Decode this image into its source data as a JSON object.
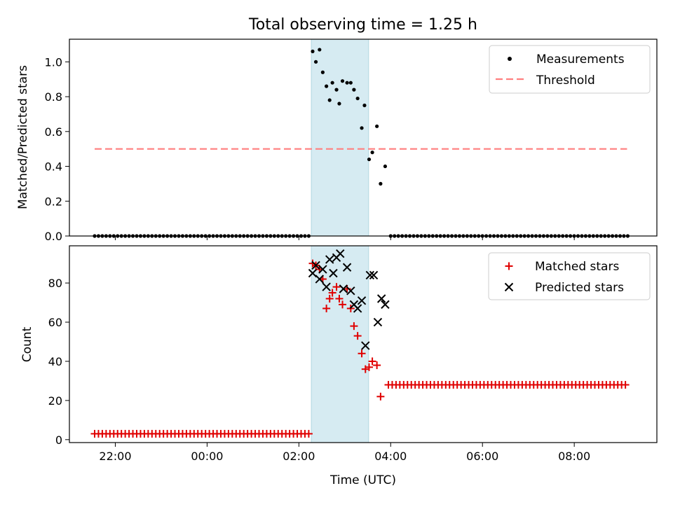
{
  "title": "Total observing time = 1.25 h",
  "colors": {
    "measurement": "#000000",
    "threshold": "#ff7f7f",
    "matched": "#e00000",
    "predicted": "#000000",
    "highlight": "#add8e6"
  },
  "chart_data": [
    {
      "type": "scatter",
      "ylabel": "Matched/Predicted stars",
      "xlim_hours": [
        -3.0,
        9.8
      ],
      "ylim": [
        0,
        1.13
      ],
      "yticks": [
        0.0,
        0.2,
        0.4,
        0.6,
        0.8,
        1.0
      ],
      "ytick_labels": [
        "0.0",
        "0.2",
        "0.4",
        "0.6",
        "0.8",
        "1.0"
      ],
      "highlight_span_hours": [
        2.27,
        3.52
      ],
      "legend_position": "top-right",
      "legend": [
        "Measurements",
        "Threshold"
      ],
      "threshold": {
        "value": 0.5,
        "x_start_hours": -2.45,
        "x_end_hours": 9.15
      },
      "series": [
        {
          "name": "Measurements",
          "marker": "dot",
          "zeros_before": {
            "start_hours": -2.45,
            "step_hours": 0.0833,
            "count": 57
          },
          "zeros_after": {
            "start_hours": 4.0,
            "step_hours": 0.0833,
            "count": 63
          },
          "points": [
            [
              2.3,
              1.06
            ],
            [
              2.37,
              1.0
            ],
            [
              2.45,
              1.07
            ],
            [
              2.52,
              0.94
            ],
            [
              2.6,
              0.86
            ],
            [
              2.67,
              0.78
            ],
            [
              2.73,
              0.88
            ],
            [
              2.82,
              0.84
            ],
            [
              2.88,
              0.76
            ],
            [
              2.95,
              0.89
            ],
            [
              3.05,
              0.88
            ],
            [
              3.13,
              0.88
            ],
            [
              3.2,
              0.84
            ],
            [
              3.28,
              0.79
            ],
            [
              3.37,
              0.62
            ],
            [
              3.43,
              0.75
            ],
            [
              3.53,
              0.44
            ],
            [
              3.6,
              0.48
            ],
            [
              3.7,
              0.63
            ],
            [
              3.78,
              0.3
            ],
            [
              3.88,
              0.4
            ]
          ]
        }
      ]
    },
    {
      "type": "scatter",
      "ylabel": "Count",
      "xlabel": "Time (UTC)",
      "xlim_hours": [
        -3.0,
        9.8
      ],
      "ylim": [
        -1.5,
        99
      ],
      "yticks": [
        0,
        20,
        40,
        60,
        80
      ],
      "ytick_labels": [
        "0",
        "20",
        "40",
        "60",
        "80"
      ],
      "xticks_hours": [
        -2,
        0,
        2,
        4,
        6,
        8
      ],
      "xtick_labels": [
        "22:00",
        "00:00",
        "02:00",
        "04:00",
        "06:00",
        "08:00"
      ],
      "highlight_span_hours": [
        2.27,
        3.52
      ],
      "legend_position": "top-right",
      "legend": [
        "Matched stars",
        "Predicted stars"
      ],
      "series": [
        {
          "name": "Matched stars",
          "marker": "plus",
          "constant_before": {
            "value": 3,
            "start_hours": -2.45,
            "step_hours": 0.0833,
            "count": 57
          },
          "constant_after": {
            "value": 28,
            "start_hours": 3.95,
            "step_hours": 0.0833,
            "count": 63
          },
          "points": [
            [
              2.3,
              90
            ],
            [
              2.37,
              89
            ],
            [
              2.45,
              87
            ],
            [
              2.52,
              82
            ],
            [
              2.6,
              67
            ],
            [
              2.67,
              72
            ],
            [
              2.73,
              75
            ],
            [
              2.82,
              78
            ],
            [
              2.88,
              72
            ],
            [
              2.95,
              69
            ],
            [
              3.05,
              77
            ],
            [
              3.13,
              67
            ],
            [
              3.2,
              58
            ],
            [
              3.28,
              53
            ],
            [
              3.37,
              44
            ],
            [
              3.45,
              36
            ],
            [
              3.53,
              37
            ],
            [
              3.6,
              40
            ],
            [
              3.7,
              38
            ],
            [
              3.78,
              22
            ]
          ]
        },
        {
          "name": "Predicted stars",
          "marker": "x",
          "points": [
            [
              2.3,
              85
            ],
            [
              2.37,
              89
            ],
            [
              2.45,
              82
            ],
            [
              2.52,
              87
            ],
            [
              2.6,
              78
            ],
            [
              2.67,
              92
            ],
            [
              2.75,
              85
            ],
            [
              2.82,
              93
            ],
            [
              2.9,
              95
            ],
            [
              2.97,
              77
            ],
            [
              3.05,
              88
            ],
            [
              3.13,
              76
            ],
            [
              3.2,
              69
            ],
            [
              3.28,
              67
            ],
            [
              3.37,
              71
            ],
            [
              3.45,
              48
            ],
            [
              3.55,
              84
            ],
            [
              3.63,
              84
            ],
            [
              3.72,
              60
            ],
            [
              3.8,
              72
            ],
            [
              3.88,
              69
            ]
          ]
        }
      ]
    }
  ]
}
